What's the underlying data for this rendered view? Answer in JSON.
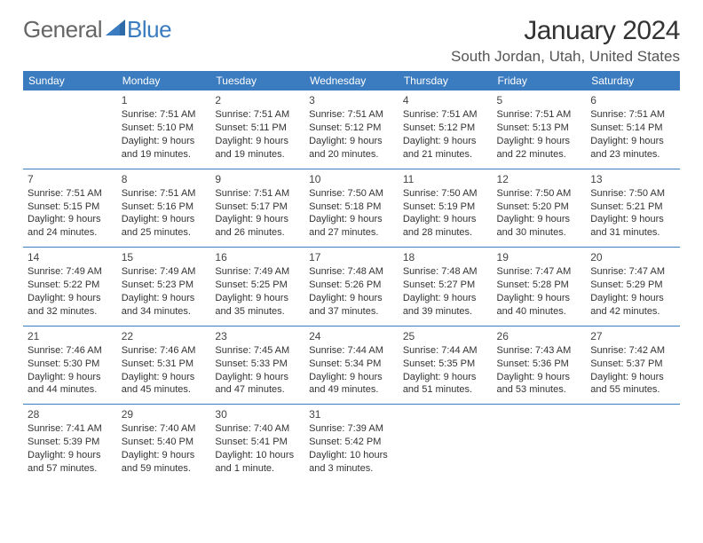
{
  "logo": {
    "text1": "General",
    "text2": "Blue"
  },
  "header": {
    "month_title": "January 2024",
    "location": "South Jordan, Utah, United States"
  },
  "colors": {
    "header_bg": "#3b7bbf",
    "header_text": "#ffffff",
    "border": "#3b7bbf",
    "body_text": "#333333"
  },
  "day_labels": [
    "Sunday",
    "Monday",
    "Tuesday",
    "Wednesday",
    "Thursday",
    "Friday",
    "Saturday"
  ],
  "weeks": [
    [
      null,
      {
        "n": "1",
        "sr": "Sunrise: 7:51 AM",
        "ss": "Sunset: 5:10 PM",
        "d1": "Daylight: 9 hours",
        "d2": "and 19 minutes."
      },
      {
        "n": "2",
        "sr": "Sunrise: 7:51 AM",
        "ss": "Sunset: 5:11 PM",
        "d1": "Daylight: 9 hours",
        "d2": "and 19 minutes."
      },
      {
        "n": "3",
        "sr": "Sunrise: 7:51 AM",
        "ss": "Sunset: 5:12 PM",
        "d1": "Daylight: 9 hours",
        "d2": "and 20 minutes."
      },
      {
        "n": "4",
        "sr": "Sunrise: 7:51 AM",
        "ss": "Sunset: 5:12 PM",
        "d1": "Daylight: 9 hours",
        "d2": "and 21 minutes."
      },
      {
        "n": "5",
        "sr": "Sunrise: 7:51 AM",
        "ss": "Sunset: 5:13 PM",
        "d1": "Daylight: 9 hours",
        "d2": "and 22 minutes."
      },
      {
        "n": "6",
        "sr": "Sunrise: 7:51 AM",
        "ss": "Sunset: 5:14 PM",
        "d1": "Daylight: 9 hours",
        "d2": "and 23 minutes."
      }
    ],
    [
      {
        "n": "7",
        "sr": "Sunrise: 7:51 AM",
        "ss": "Sunset: 5:15 PM",
        "d1": "Daylight: 9 hours",
        "d2": "and 24 minutes."
      },
      {
        "n": "8",
        "sr": "Sunrise: 7:51 AM",
        "ss": "Sunset: 5:16 PM",
        "d1": "Daylight: 9 hours",
        "d2": "and 25 minutes."
      },
      {
        "n": "9",
        "sr": "Sunrise: 7:51 AM",
        "ss": "Sunset: 5:17 PM",
        "d1": "Daylight: 9 hours",
        "d2": "and 26 minutes."
      },
      {
        "n": "10",
        "sr": "Sunrise: 7:50 AM",
        "ss": "Sunset: 5:18 PM",
        "d1": "Daylight: 9 hours",
        "d2": "and 27 minutes."
      },
      {
        "n": "11",
        "sr": "Sunrise: 7:50 AM",
        "ss": "Sunset: 5:19 PM",
        "d1": "Daylight: 9 hours",
        "d2": "and 28 minutes."
      },
      {
        "n": "12",
        "sr": "Sunrise: 7:50 AM",
        "ss": "Sunset: 5:20 PM",
        "d1": "Daylight: 9 hours",
        "d2": "and 30 minutes."
      },
      {
        "n": "13",
        "sr": "Sunrise: 7:50 AM",
        "ss": "Sunset: 5:21 PM",
        "d1": "Daylight: 9 hours",
        "d2": "and 31 minutes."
      }
    ],
    [
      {
        "n": "14",
        "sr": "Sunrise: 7:49 AM",
        "ss": "Sunset: 5:22 PM",
        "d1": "Daylight: 9 hours",
        "d2": "and 32 minutes."
      },
      {
        "n": "15",
        "sr": "Sunrise: 7:49 AM",
        "ss": "Sunset: 5:23 PM",
        "d1": "Daylight: 9 hours",
        "d2": "and 34 minutes."
      },
      {
        "n": "16",
        "sr": "Sunrise: 7:49 AM",
        "ss": "Sunset: 5:25 PM",
        "d1": "Daylight: 9 hours",
        "d2": "and 35 minutes."
      },
      {
        "n": "17",
        "sr": "Sunrise: 7:48 AM",
        "ss": "Sunset: 5:26 PM",
        "d1": "Daylight: 9 hours",
        "d2": "and 37 minutes."
      },
      {
        "n": "18",
        "sr": "Sunrise: 7:48 AM",
        "ss": "Sunset: 5:27 PM",
        "d1": "Daylight: 9 hours",
        "d2": "and 39 minutes."
      },
      {
        "n": "19",
        "sr": "Sunrise: 7:47 AM",
        "ss": "Sunset: 5:28 PM",
        "d1": "Daylight: 9 hours",
        "d2": "and 40 minutes."
      },
      {
        "n": "20",
        "sr": "Sunrise: 7:47 AM",
        "ss": "Sunset: 5:29 PM",
        "d1": "Daylight: 9 hours",
        "d2": "and 42 minutes."
      }
    ],
    [
      {
        "n": "21",
        "sr": "Sunrise: 7:46 AM",
        "ss": "Sunset: 5:30 PM",
        "d1": "Daylight: 9 hours",
        "d2": "and 44 minutes."
      },
      {
        "n": "22",
        "sr": "Sunrise: 7:46 AM",
        "ss": "Sunset: 5:31 PM",
        "d1": "Daylight: 9 hours",
        "d2": "and 45 minutes."
      },
      {
        "n": "23",
        "sr": "Sunrise: 7:45 AM",
        "ss": "Sunset: 5:33 PM",
        "d1": "Daylight: 9 hours",
        "d2": "and 47 minutes."
      },
      {
        "n": "24",
        "sr": "Sunrise: 7:44 AM",
        "ss": "Sunset: 5:34 PM",
        "d1": "Daylight: 9 hours",
        "d2": "and 49 minutes."
      },
      {
        "n": "25",
        "sr": "Sunrise: 7:44 AM",
        "ss": "Sunset: 5:35 PM",
        "d1": "Daylight: 9 hours",
        "d2": "and 51 minutes."
      },
      {
        "n": "26",
        "sr": "Sunrise: 7:43 AM",
        "ss": "Sunset: 5:36 PM",
        "d1": "Daylight: 9 hours",
        "d2": "and 53 minutes."
      },
      {
        "n": "27",
        "sr": "Sunrise: 7:42 AM",
        "ss": "Sunset: 5:37 PM",
        "d1": "Daylight: 9 hours",
        "d2": "and 55 minutes."
      }
    ],
    [
      {
        "n": "28",
        "sr": "Sunrise: 7:41 AM",
        "ss": "Sunset: 5:39 PM",
        "d1": "Daylight: 9 hours",
        "d2": "and 57 minutes."
      },
      {
        "n": "29",
        "sr": "Sunrise: 7:40 AM",
        "ss": "Sunset: 5:40 PM",
        "d1": "Daylight: 9 hours",
        "d2": "and 59 minutes."
      },
      {
        "n": "30",
        "sr": "Sunrise: 7:40 AM",
        "ss": "Sunset: 5:41 PM",
        "d1": "Daylight: 10 hours",
        "d2": "and 1 minute."
      },
      {
        "n": "31",
        "sr": "Sunrise: 7:39 AM",
        "ss": "Sunset: 5:42 PM",
        "d1": "Daylight: 10 hours",
        "d2": "and 3 minutes."
      },
      null,
      null,
      null
    ]
  ]
}
